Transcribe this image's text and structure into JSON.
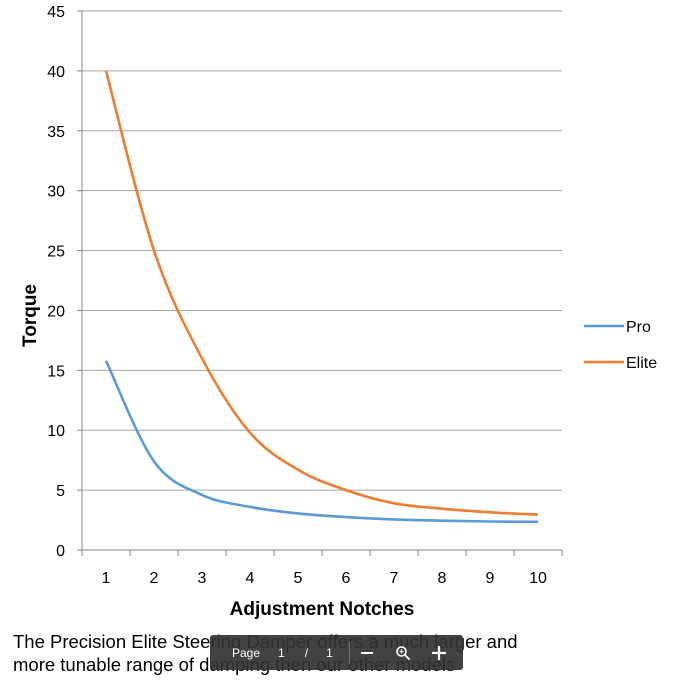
{
  "chart_data": {
    "type": "line",
    "title": "",
    "xlabel": "Adjustment Notches",
    "ylabel": "Torque",
    "x": [
      1,
      2,
      3,
      4,
      5,
      6,
      7,
      8,
      9,
      10
    ],
    "xlim": [
      0.5,
      10.5
    ],
    "ylim": [
      0,
      45
    ],
    "yticks": [
      0,
      5,
      10,
      15,
      20,
      25,
      30,
      35,
      40,
      45
    ],
    "grid": "horizontal",
    "legend_position": "right",
    "series": [
      {
        "name": "Pro",
        "color": "#5b9bd5",
        "values": [
          15.8,
          7.4,
          4.6,
          3.6,
          3.05,
          2.75,
          2.55,
          2.45,
          2.38,
          2.35
        ]
      },
      {
        "name": "Elite",
        "color": "#ed7d31",
        "values": [
          40.0,
          25.0,
          16.0,
          9.8,
          6.7,
          5.0,
          3.9,
          3.45,
          3.15,
          2.95
        ]
      }
    ]
  },
  "caption": {
    "line1": "The Precision Elite Steering Damper offers a much larger and",
    "line2": "more tunable range of damping then our other models"
  },
  "toolbar": {
    "page_label": "Page",
    "current_page": "1",
    "separator": "/",
    "total_pages": "1"
  },
  "icons": {
    "zoom_out": "minus-icon",
    "zoom_fit": "magnifier-icon",
    "zoom_in": "plus-icon"
  }
}
